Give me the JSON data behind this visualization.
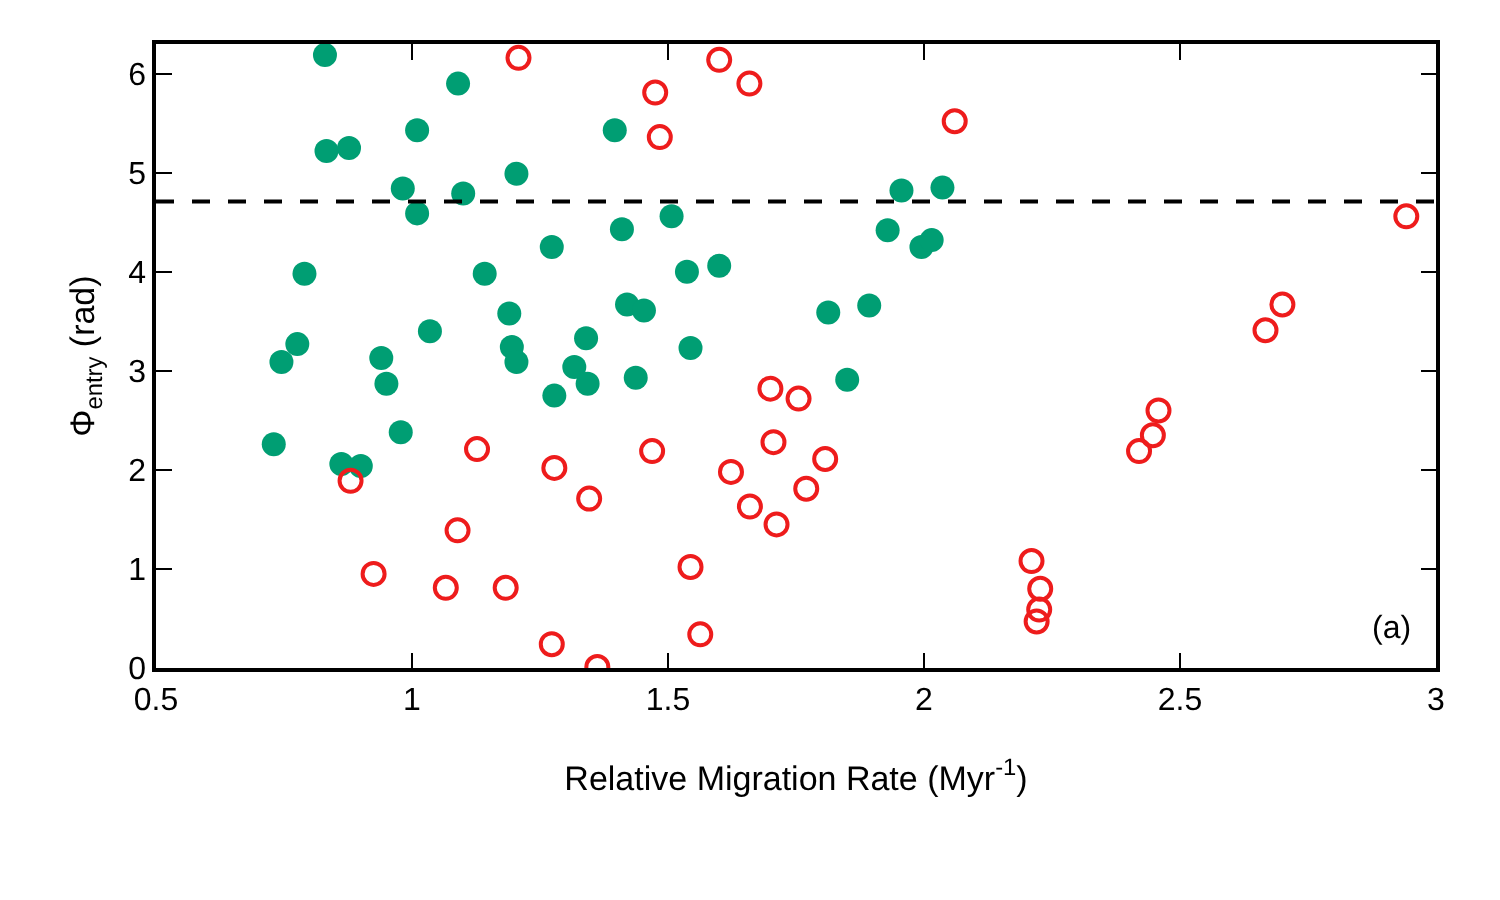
{
  "chart_data": {
    "type": "scatter",
    "xlabel": "Relative Migration Rate (Myr$^{-1}$)",
    "ylabel": "Φ$_{entry}$ (rad)",
    "xlim": [
      0.5,
      3
    ],
    "xticks": [
      0.5,
      1,
      1.5,
      2,
      2.5,
      3
    ],
    "ylim": [
      0,
      6.3
    ],
    "yticks": [
      0,
      1,
      2,
      3,
      4,
      5,
      6
    ],
    "marker": "circle",
    "ref_lines": [
      {
        "axis": "y",
        "value": 4.71,
        "color": "#000000",
        "line_style": "dashed"
      }
    ],
    "annotations": [
      "(a)"
    ],
    "series": [
      {
        "color": "#009e73",
        "x": [
          0.73,
          0.745,
          0.776,
          0.79,
          0.83,
          0.833,
          0.877,
          0.862,
          0.9,
          0.94,
          0.95,
          0.978,
          0.982,
          1.01,
          1.01,
          1.035,
          1.09,
          1.1,
          1.142,
          1.204,
          1.19,
          1.195,
          1.204,
          1.273,
          1.278,
          1.317,
          1.34,
          1.343,
          1.396,
          1.41,
          1.42,
          1.453,
          1.437,
          1.507,
          1.537,
          1.6,
          1.544,
          1.813,
          1.893,
          1.85,
          1.929,
          1.956,
          1.995,
          2.015,
          2.036
        ],
        "values": [
          2.26,
          3.09,
          3.27,
          3.98,
          6.19,
          5.22,
          5.25,
          2.06,
          2.04,
          3.13,
          2.87,
          2.38,
          4.84,
          4.59,
          5.43,
          3.4,
          5.9,
          4.79,
          3.98,
          4.99,
          3.58,
          3.24,
          3.09,
          4.25,
          2.75,
          3.04,
          3.33,
          2.87,
          5.43,
          4.43,
          3.67,
          3.61,
          2.93,
          4.56,
          4.0,
          4.06,
          3.23,
          3.59,
          3.66,
          2.91,
          4.42,
          4.82,
          4.25,
          4.32,
          4.85
        ]
      },
      {
        "color": "#ee1c1c",
        "marker": "circle-open",
        "x": [
          1.208,
          0.88,
          1.127,
          0.925,
          1.089,
          1.066,
          1.183,
          1.278,
          1.273,
          1.346,
          1.362,
          1.475,
          1.484,
          1.6,
          1.659,
          2.06,
          1.469,
          1.7,
          1.755,
          1.706,
          1.807,
          1.623,
          1.77,
          1.66,
          1.712,
          1.544,
          1.563,
          2.21,
          2.227,
          2.225,
          2.22,
          2.42,
          2.447,
          2.458,
          2.667,
          2.7,
          2.942
        ],
        "values": [
          6.16,
          1.89,
          2.21,
          0.95,
          1.39,
          0.81,
          0.81,
          2.02,
          0.24,
          1.71,
          0.01,
          5.81,
          5.36,
          6.14,
          5.9,
          5.52,
          2.19,
          2.82,
          2.72,
          2.28,
          2.11,
          1.98,
          1.81,
          1.63,
          1.45,
          1.02,
          0.34,
          1.08,
          0.8,
          0.59,
          0.47,
          2.19,
          2.35,
          2.6,
          3.41,
          3.67,
          4.56
        ]
      }
    ]
  }
}
